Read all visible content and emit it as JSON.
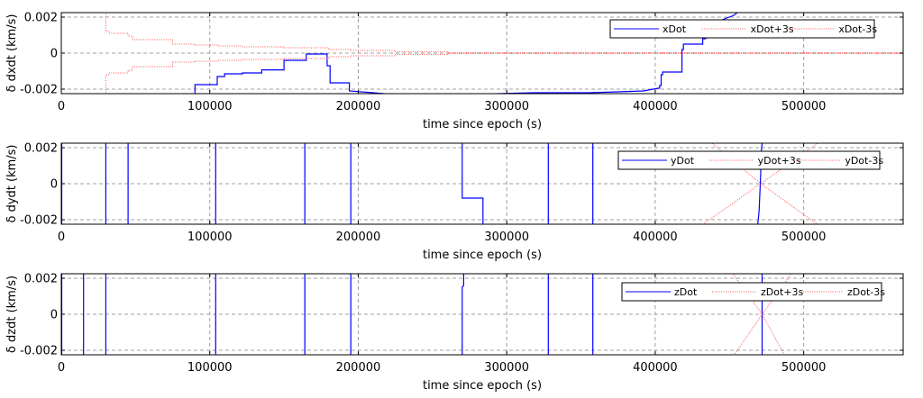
{
  "chart_data": [
    {
      "type": "line",
      "title": "",
      "xlabel": "time since epoch (s)",
      "ylabel": "δ dxdt (km/s)",
      "xlim": [
        0,
        567000
      ],
      "ylim": [
        -0.00225,
        0.00225
      ],
      "x_ticks": [
        0,
        100000,
        200000,
        300000,
        400000,
        500000
      ],
      "x_tick_labels": [
        "0",
        "100000",
        "200000",
        "300000",
        "400000",
        "500000"
      ],
      "y_ticks": [
        -0.002,
        0,
        0.002
      ],
      "y_tick_labels": [
        "-0.002",
        "0",
        "0.002"
      ],
      "grid": true,
      "legend_position": "top-right",
      "series": [
        {
          "name": "xDot",
          "color": "#0000ff",
          "style": "solid",
          "x": [
            90000,
            90000,
            105000,
            105000,
            110000,
            110000,
            122000,
            122000,
            135000,
            135000,
            150000,
            150000,
            165000,
            165000,
            171000,
            179000,
            179000,
            181000,
            181000,
            194000,
            194000,
            210000,
            225000,
            270000,
            318000,
            355000,
            375000,
            392000,
            402000,
            403000,
            403000,
            404000,
            404000,
            405000,
            405000,
            418000,
            418000,
            419000,
            419000,
            432000,
            432000,
            434000,
            434000,
            453000,
            456000
          ],
          "y": [
            -0.0024,
            -0.00175,
            -0.00175,
            -0.0013,
            -0.0013,
            -0.00115,
            -0.00115,
            -0.0011,
            -0.0011,
            -0.00093,
            -0.00093,
            -0.0004,
            -0.0004,
            -5e-05,
            -5e-05,
            -5e-05,
            -0.0007,
            -0.0007,
            -0.00165,
            -0.00165,
            -0.0021,
            -0.0022,
            -0.0023,
            -0.0023,
            -0.0022,
            -0.0022,
            -0.00215,
            -0.0021,
            -0.00195,
            -0.00195,
            -0.0018,
            -0.0018,
            -0.0012,
            -0.0012,
            -0.00105,
            -0.00105,
            0.0002,
            0.0002,
            0.0005,
            0.0005,
            0.0008,
            0.0008,
            0.0015,
            0.0021,
            0.0023
          ]
        },
        {
          "name": "xDot+3s",
          "color": "#ff5050",
          "style": "dotted",
          "x": [
            30000,
            30000,
            32000,
            32000,
            45000,
            45000,
            48000,
            48000,
            75000,
            75000,
            90000,
            90000,
            105000,
            105000,
            122000,
            122000,
            150000,
            150000,
            180000,
            180000,
            195000,
            195000,
            225000,
            225000,
            260000,
            260000,
            567000
          ],
          "y": [
            0.0023,
            0.0012,
            0.0012,
            0.0011,
            0.0011,
            0.00095,
            0.00095,
            0.00075,
            0.00075,
            0.0005,
            0.0005,
            0.00045,
            0.00045,
            0.0004,
            0.0004,
            0.00035,
            0.00035,
            0.0003,
            0.0003,
            0.0002,
            0.0002,
            0.00015,
            0.00015,
            8e-05,
            8e-05,
            2e-05,
            2e-05
          ]
        },
        {
          "name": "xDot-3s",
          "color": "#ff5050",
          "style": "dotted",
          "x": [
            30000,
            30000,
            32000,
            32000,
            45000,
            45000,
            48000,
            48000,
            75000,
            75000,
            90000,
            90000,
            105000,
            105000,
            122000,
            122000,
            150000,
            150000,
            180000,
            180000,
            195000,
            195000,
            225000,
            225000,
            260000,
            260000,
            567000
          ],
          "y": [
            -0.0023,
            -0.0012,
            -0.0012,
            -0.0011,
            -0.0011,
            -0.00095,
            -0.00095,
            -0.00075,
            -0.00075,
            -0.0005,
            -0.0005,
            -0.00045,
            -0.00045,
            -0.0004,
            -0.0004,
            -0.00035,
            -0.00035,
            -0.0003,
            -0.0003,
            -0.0002,
            -0.0002,
            -0.00015,
            -0.00015,
            -8e-05,
            -8e-05,
            -2e-05,
            -2e-05
          ]
        }
      ]
    },
    {
      "type": "line",
      "title": "",
      "xlabel": "time since epoch (s)",
      "ylabel": "δ dydt (km/s)",
      "xlim": [
        0,
        567000
      ],
      "ylim": [
        -0.00225,
        0.00225
      ],
      "x_ticks": [
        0,
        100000,
        200000,
        300000,
        400000,
        500000
      ],
      "x_tick_labels": [
        "0",
        "100000",
        "200000",
        "300000",
        "400000",
        "500000"
      ],
      "y_ticks": [
        -0.002,
        0,
        0.002
      ],
      "y_tick_labels": [
        "-0.002",
        "0",
        "0.002"
      ],
      "grid": true,
      "legend_position": "top-right",
      "series": [
        {
          "name": "yDot",
          "color": "#0000ff",
          "style": "solid",
          "x": [
            300,
            300,
            null,
            30000,
            30000,
            null,
            45000,
            45000,
            null,
            104000,
            104000,
            null,
            164000,
            164000,
            null,
            195000,
            195000,
            null,
            270000,
            270000,
            284000,
            284000,
            null,
            328000,
            328000,
            null,
            358000,
            358000,
            null,
            469000,
            470000,
            471000,
            471500,
            472000
          ],
          "y": [
            0.0023,
            -0.0023,
            null,
            0.0023,
            -0.0023,
            null,
            0.0023,
            -0.0023,
            null,
            0.0023,
            -0.0023,
            null,
            0.0023,
            -0.0023,
            null,
            0.0023,
            -0.0023,
            null,
            0.0023,
            -0.0008,
            -0.0008,
            -0.0023,
            null,
            0.0023,
            -0.0023,
            null,
            0.0023,
            -0.0023,
            null,
            -0.0023,
            -0.0015,
            0.0005,
            0.0018,
            0.0023
          ]
        },
        {
          "name": "yDot+3s",
          "color": "#ff5050",
          "style": "dotted",
          "x": [
            433000,
            471000,
            512000
          ],
          "y": [
            -0.0022,
            0.0,
            0.0024
          ]
        },
        {
          "name": "yDot-3s",
          "color": "#ff5050",
          "style": "dotted",
          "x": [
            436000,
            471000,
            510000
          ],
          "y": [
            0.0024,
            0.0,
            -0.0023
          ]
        }
      ]
    },
    {
      "type": "line",
      "title": "",
      "xlabel": "time since epoch (s)",
      "ylabel": "δ dzdt (km/s)",
      "xlim": [
        0,
        567000
      ],
      "ylim": [
        -0.00225,
        0.00225
      ],
      "x_ticks": [
        0,
        100000,
        200000,
        300000,
        400000,
        500000
      ],
      "x_tick_labels": [
        "0",
        "100000",
        "200000",
        "300000",
        "400000",
        "500000"
      ],
      "y_ticks": [
        -0.002,
        0,
        0.002
      ],
      "y_tick_labels": [
        "-0.002",
        "0",
        "0.002"
      ],
      "grid": true,
      "legend_position": "top-right",
      "series": [
        {
          "name": "zDot",
          "color": "#0000ff",
          "style": "solid",
          "x": [
            300,
            300,
            null,
            15000,
            15000,
            null,
            30000,
            30000,
            null,
            104000,
            104000,
            null,
            164000,
            164000,
            null,
            195000,
            195000,
            null,
            270000,
            270000,
            271000,
            271000,
            null,
            328000,
            328000,
            null,
            358000,
            358000,
            null,
            472000,
            472000
          ],
          "y": [
            0.0023,
            -0.0023,
            null,
            0.0023,
            -0.0023,
            null,
            0.0023,
            -0.0023,
            null,
            0.0023,
            -0.0023,
            null,
            0.0023,
            -0.0023,
            null,
            0.0023,
            -0.0023,
            null,
            -0.0023,
            0.0015,
            0.0016,
            0.0023,
            null,
            0.0023,
            -0.0023,
            null,
            0.0023,
            -0.0023,
            null,
            -0.0023,
            0.0023
          ]
        },
        {
          "name": "zDot+3s",
          "color": "#ff5050",
          "style": "dotted",
          "x": [
            452000,
            472000,
            493000
          ],
          "y": [
            -0.0024,
            0.0,
            0.0024
          ]
        },
        {
          "name": "zDot-3s",
          "color": "#ff5050",
          "style": "dotted",
          "x": [
            451000,
            472000,
            488000
          ],
          "y": [
            0.0024,
            0.0,
            -0.0024
          ]
        }
      ]
    }
  ]
}
